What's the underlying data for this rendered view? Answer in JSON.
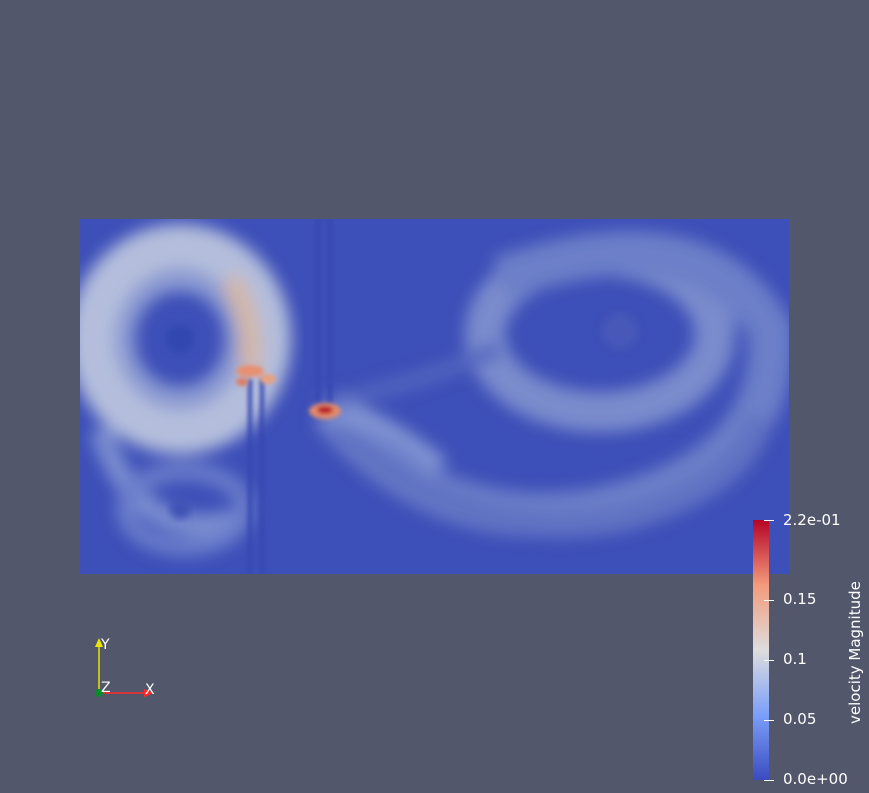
{
  "colormap": {
    "title": "velocity Magnitude",
    "min_label": "0.0e+00",
    "max_label": "2.2e-01",
    "ticks": [
      "0.05",
      "0.1",
      "0.15"
    ],
    "colors": {
      "low": "#3b4cc0",
      "mid": "#dddddd",
      "high": "#b40426"
    }
  },
  "orientation_axes": {
    "x_label": "X",
    "y_label": "Y",
    "z_label": "Z",
    "x_color": "#ff2a2a",
    "y_color": "#e6e600",
    "z_color": "#0a8a2a"
  },
  "background_color": "#52576b"
}
